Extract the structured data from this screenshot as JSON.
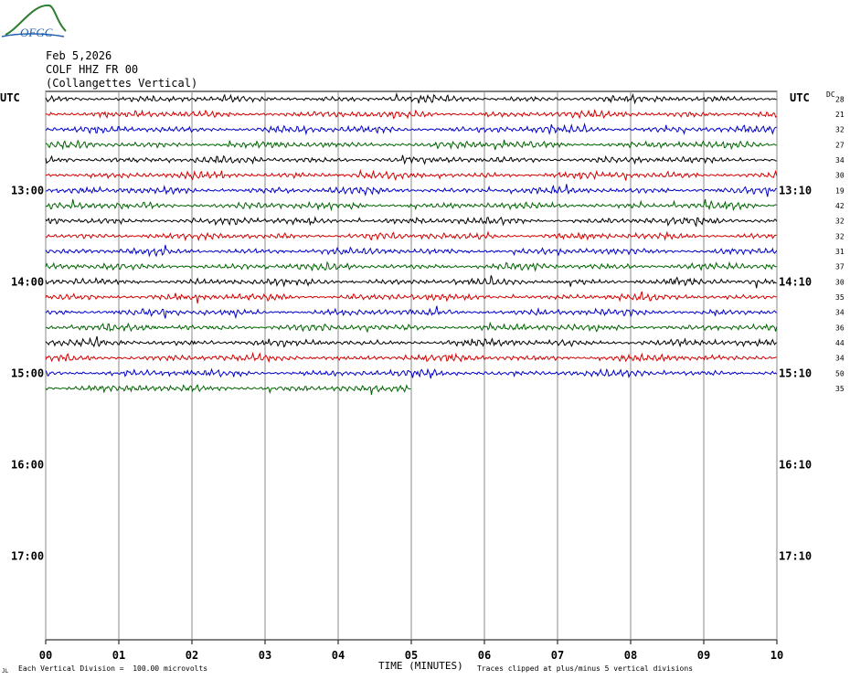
{
  "logo": {
    "text": "OFGC",
    "color": "#2e7d32",
    "text_color": "#1f5fae"
  },
  "header": {
    "date": "Feb 5,2026",
    "station": "COLF HHZ FR 00",
    "location": "(Collangettes Vertical)"
  },
  "axes": {
    "left_unit": "UTC",
    "right_unit": "UTC",
    "dc_label": "DC",
    "xlabel": "TIME (MINUTES)",
    "x_ticks": [
      "00",
      "01",
      "02",
      "03",
      "04",
      "05",
      "06",
      "07",
      "08",
      "09",
      "10"
    ],
    "left_hour_labels": [
      {
        "label": "13:00",
        "trace": 6
      },
      {
        "label": "14:00",
        "trace": 12
      },
      {
        "label": "15:00",
        "trace": 18
      },
      {
        "label": "16:00",
        "trace": 24
      },
      {
        "label": "17:00",
        "trace": 30
      }
    ],
    "right_hour_labels": [
      {
        "label": "13:10",
        "trace": 6
      },
      {
        "label": "14:10",
        "trace": 12
      },
      {
        "label": "15:10",
        "trace": 18
      },
      {
        "label": "16:10",
        "trace": 24
      },
      {
        "label": "17:10",
        "trace": 30
      }
    ]
  },
  "footer": {
    "division_note": "Each Vertical Division =  100.00 microvolts",
    "clip_note": "Traces clipped at plus/minus 5 vertical divisions",
    "corner_mark": "JL"
  },
  "chart_data": {
    "type": "line",
    "title": "",
    "xlabel": "TIME (MINUTES)",
    "ylabel": "UTC",
    "xlim": [
      0,
      10
    ],
    "total_trace_rows": 36,
    "grid": "vertical lines at each minute",
    "trace_colors": [
      "#000000",
      "#d40000",
      "#0000c8",
      "#006400"
    ],
    "series": [
      {
        "trace": 0,
        "dc": 28,
        "minutes": 10,
        "color": "#000000"
      },
      {
        "trace": 1,
        "dc": 21,
        "minutes": 10,
        "color": "#d40000"
      },
      {
        "trace": 2,
        "dc": 32,
        "minutes": 10,
        "color": "#0000c8"
      },
      {
        "trace": 3,
        "dc": 27,
        "minutes": 10,
        "color": "#006400"
      },
      {
        "trace": 4,
        "dc": 34,
        "minutes": 10,
        "color": "#000000"
      },
      {
        "trace": 5,
        "dc": 30,
        "minutes": 10,
        "color": "#d40000"
      },
      {
        "trace": 6,
        "dc": 19,
        "minutes": 10,
        "color": "#0000c8"
      },
      {
        "trace": 7,
        "dc": 42,
        "minutes": 10,
        "color": "#006400"
      },
      {
        "trace": 8,
        "dc": 32,
        "minutes": 10,
        "color": "#000000"
      },
      {
        "trace": 9,
        "dc": 32,
        "minutes": 10,
        "color": "#d40000"
      },
      {
        "trace": 10,
        "dc": 31,
        "minutes": 10,
        "color": "#0000c8"
      },
      {
        "trace": 11,
        "dc": 37,
        "minutes": 10,
        "color": "#006400"
      },
      {
        "trace": 12,
        "dc": 30,
        "minutes": 10,
        "color": "#000000"
      },
      {
        "trace": 13,
        "dc": 35,
        "minutes": 10,
        "color": "#d40000"
      },
      {
        "trace": 14,
        "dc": 34,
        "minutes": 10,
        "color": "#0000c8"
      },
      {
        "trace": 15,
        "dc": 36,
        "minutes": 10,
        "color": "#006400"
      },
      {
        "trace": 16,
        "dc": 44,
        "minutes": 10,
        "color": "#000000"
      },
      {
        "trace": 17,
        "dc": 34,
        "minutes": 10,
        "color": "#d40000"
      },
      {
        "trace": 18,
        "dc": 50,
        "minutes": 10,
        "color": "#0000c8"
      },
      {
        "trace": 19,
        "dc": 35,
        "minutes": 5,
        "color": "#006400"
      }
    ]
  }
}
